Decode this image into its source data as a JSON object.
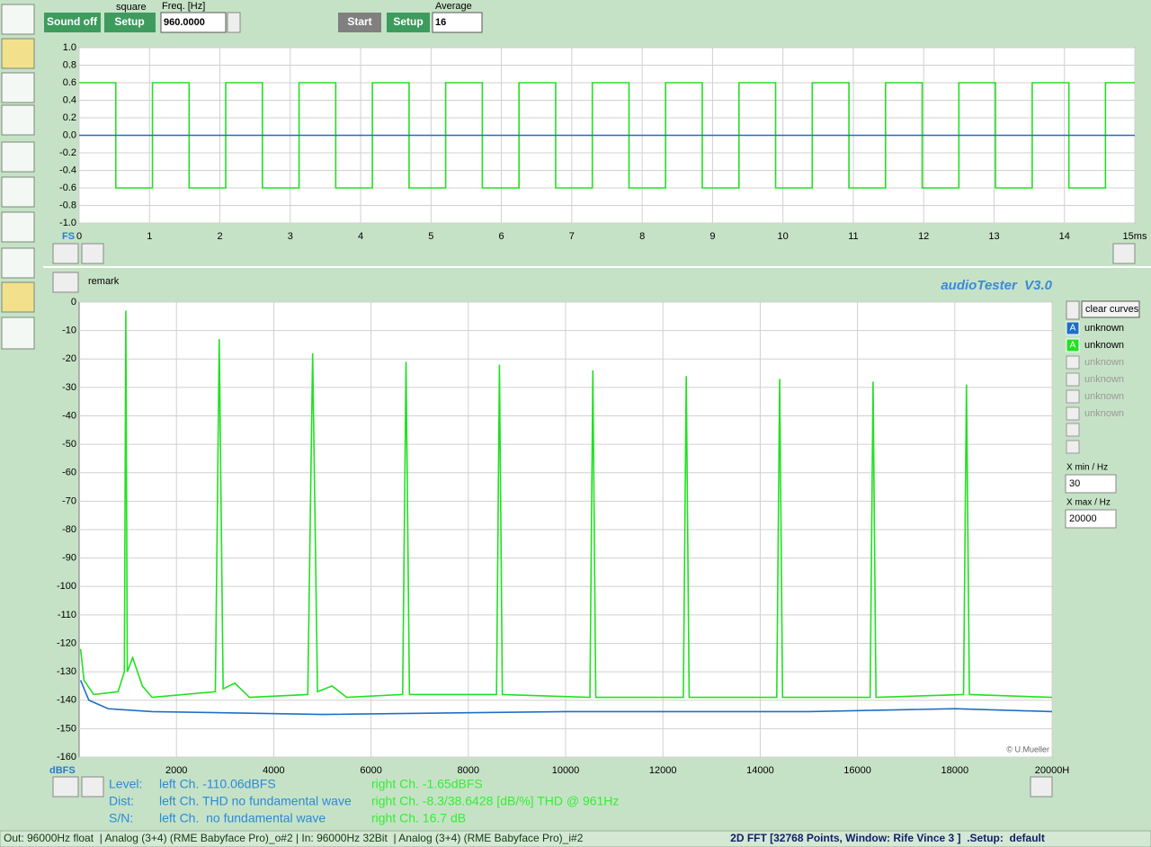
{
  "toolbar": {
    "sound_button": "Sound off",
    "signal": "square",
    "setup_button": "Setup",
    "freq_label": "Freq. [Hz]",
    "freq_value": "960.0000",
    "start_button": "Start",
    "setup2_button": "Setup",
    "average_label": "Average",
    "average_value": "16"
  },
  "chart_data": [
    {
      "type": "line",
      "corner_label": "FS",
      "xlim": [
        0,
        15
      ],
      "ylim": [
        -1,
        1
      ],
      "grid": true,
      "xticks": [
        0,
        1,
        2,
        3,
        4,
        5,
        6,
        7,
        8,
        9,
        10,
        11,
        12,
        13,
        14,
        {
          "value": 15,
          "label": "15ms"
        }
      ],
      "yticks": [
        {
          "value": 1,
          "label": "1.0"
        },
        0.8,
        0.6,
        0.4,
        0.2,
        {
          "value": 0,
          "label": "0.0"
        },
        -0.2,
        -0.4,
        -0.6,
        -0.8,
        {
          "value": -1,
          "label": "-1.0"
        }
      ],
      "series": [
        {
          "color": "#22e022",
          "x": [
            0,
            0.521,
            0.521,
            1.042,
            1.042,
            1.563,
            1.563,
            2.083,
            2.083,
            2.604,
            2.604,
            3.125,
            3.125,
            3.646,
            3.646,
            4.167,
            4.167,
            4.688,
            4.688,
            5.208,
            5.208,
            5.729,
            5.729,
            6.25,
            6.25,
            6.771,
            6.771,
            7.292,
            7.292,
            7.813,
            7.813,
            8.333,
            8.333,
            8.854,
            8.854,
            9.375,
            9.375,
            9.896,
            9.896,
            10.417,
            10.417,
            10.938,
            10.938,
            11.458,
            11.458,
            11.979,
            11.979,
            12.5,
            12.5,
            13.021,
            13.021,
            13.542,
            13.542,
            14.063,
            14.063,
            14.583,
            14.583,
            15
          ],
          "values": [
            0.6,
            0.6,
            -0.6,
            -0.6,
            0.6,
            0.6,
            -0.6,
            -0.6,
            0.6,
            0.6,
            -0.6,
            -0.6,
            0.6,
            0.6,
            -0.6,
            -0.6,
            0.6,
            0.6,
            -0.6,
            -0.6,
            0.6,
            0.6,
            -0.6,
            -0.6,
            0.6,
            0.6,
            -0.6,
            -0.6,
            0.6,
            0.6,
            -0.6,
            -0.6,
            0.6,
            0.6,
            -0.6,
            -0.6,
            0.6,
            0.6,
            -0.6,
            -0.6,
            0.6,
            0.6,
            -0.6,
            -0.6,
            0.6,
            0.6,
            -0.6,
            -0.6,
            0.6,
            0.6,
            -0.6,
            -0.6,
            0.6,
            0.6,
            -0.6,
            -0.6,
            0.6,
            0.6
          ]
        },
        {
          "color": "#1f6fc5",
          "x": [
            0,
            15
          ],
          "values": [
            0,
            0
          ]
        }
      ]
    },
    {
      "type": "line",
      "ylabel": "dBFS",
      "copyright": "© U.Mueller",
      "xlim": [
        0,
        20000
      ],
      "ylim": [
        -160,
        0
      ],
      "grid": true,
      "xticks": [
        2000,
        4000,
        6000,
        8000,
        10000,
        12000,
        14000,
        16000,
        18000,
        {
          "value": 20000,
          "label": "20000H"
        }
      ],
      "yticks": [
        0,
        -10,
        -20,
        -30,
        -40,
        -50,
        -60,
        -70,
        -80,
        -90,
        -100,
        -110,
        -120,
        -130,
        -140,
        -150,
        -160
      ],
      "series": [
        {
          "color": "#1f6fc5",
          "x": [
            30,
            200,
            600,
            1500,
            5000,
            10000,
            15000,
            18000,
            20000
          ],
          "values": [
            -133,
            -140,
            -143,
            -144,
            -145,
            -144,
            -144,
            -143,
            -144
          ]
        },
        {
          "color": "#22e022",
          "x": [
            30,
            100,
            300,
            800,
            930,
            960,
            990,
            1100,
            1300,
            1500,
            2800,
            2880,
            2960,
            3200,
            3500,
            4700,
            4800,
            4900,
            5200,
            5500,
            6650,
            6720,
            6790,
            8580,
            8640,
            8700,
            10500,
            10560,
            10620,
            12420,
            12480,
            12540,
            14340,
            14400,
            14460,
            16260,
            16320,
            16380,
            18180,
            18240,
            18300,
            20000
          ],
          "values": [
            -122,
            -133,
            -138,
            -137,
            -130,
            -3,
            -130,
            -125,
            -135,
            -139,
            -137,
            -13,
            -136,
            -134,
            -139,
            -138,
            -18,
            -137,
            -135,
            -139,
            -138,
            -21,
            -138,
            -138,
            -22,
            -138,
            -139,
            -24,
            -139,
            -139,
            -26,
            -139,
            -139,
            -27,
            -139,
            -139,
            -28,
            -139,
            -138,
            -29,
            -138,
            -139
          ]
        }
      ]
    }
  ],
  "remark": "remark",
  "brand": "audioTester  V3.0",
  "legend": {
    "clear_button": "clear curves",
    "curves": [
      {
        "tag": "A",
        "name": "unknown",
        "color": "#1f6fc5"
      },
      {
        "tag": "A",
        "name": "unknown",
        "color": "#22e022"
      },
      {
        "name": "unknown"
      },
      {
        "name": "unknown"
      },
      {
        "name": "unknown"
      },
      {
        "name": "unknown"
      }
    ]
  },
  "range": {
    "xmin_label": "X min / Hz",
    "xmin": "30",
    "xmax_label": "X max / Hz",
    "xmax": "20000"
  },
  "readout": [
    {
      "label": "Level:",
      "left": "left Ch. -110.06dBFS",
      "right": "right Ch. -1.65dBFS"
    },
    {
      "label": "Dist:",
      "left": "left Ch. THD no fundamental wave",
      "right": "right Ch. -8.3/38.6428 [dB/%] THD @ 961Hz"
    },
    {
      "label": "S/N:",
      "left": "left Ch.  no fundamental wave",
      "right": "right Ch. 16.7 dB"
    }
  ],
  "status": {
    "left": "Out: 96000Hz float  | Analog (3+4) (RME Babyface Pro)_o#2 | In: 96000Hz 32Bit  | Analog (3+4) (RME Babyface Pro)_i#2",
    "right": "2D FFT [32768 Points, Window: Rife Vince 3 ]  .Setup:  default"
  }
}
